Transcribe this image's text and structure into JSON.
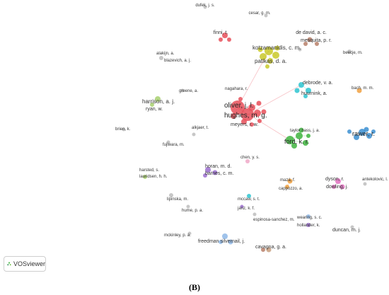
{
  "figure_label": "(B)",
  "badge": {
    "text": "VOSviewer",
    "icon": "vosviewer-logo-icon"
  },
  "colors": {
    "red": "#e8505b",
    "yellow": "#c9c92a",
    "green": "#3fb43f",
    "cyan": "#2ec4d0",
    "blue": "#3b8fd1",
    "purple": "#9b6fcf",
    "orange": "#f0a040",
    "pink": "#e070c0",
    "lightblue": "#8fb8e8",
    "brown": "#b8806a",
    "lightgreen": "#a8d070",
    "gray": "#bdbdbd",
    "lightpink": "#f0a8c8",
    "tan": "#c8a080"
  },
  "labels": [
    "dufek, j. s.",
    "cesar, g. m.",
    "finni, t.",
    "de david, a. c.",
    "mesquita, p. r.",
    "kotzamanidis, c. m.",
    "patikas, d. a.",
    "alakijn, a.",
    "blazevich, a. j.",
    "beecje, m.",
    "nagahara, r.",
    "debrode, v. a.",
    "huurnink, a.",
    "bach, m. m.",
    "greene, a.",
    "harrison, a. j.",
    "ryan, w.",
    "oliver, j. l.",
    "hughes, m. g.",
    "meyers, r. w.",
    "taylor hass, j. a.",
    "rawer, r.",
    "brien, k.",
    "alkjaer, t.",
    "ford, k. r.",
    "fujiwara, m.",
    "chen, y. s.",
    "horan, m. d.",
    "barnes, c. m.",
    "harsted, s.",
    "lauridsen, h. h.",
    "mazá, f.",
    "dyson, r.",
    "antekolovic, l.",
    "cappozzo, a.",
    "dowling, j.",
    "lipinska, m.",
    "mccaw, s. t.",
    "janz, k. f.",
    "hume, p. a.",
    "espinosa-sanchez, m.",
    "wearing, s. c.",
    "hollander, k.",
    "mckinley, p. a.",
    "freedman silvernail, j.",
    "duncan, m. j.",
    "cavagna, g. a."
  ]
}
